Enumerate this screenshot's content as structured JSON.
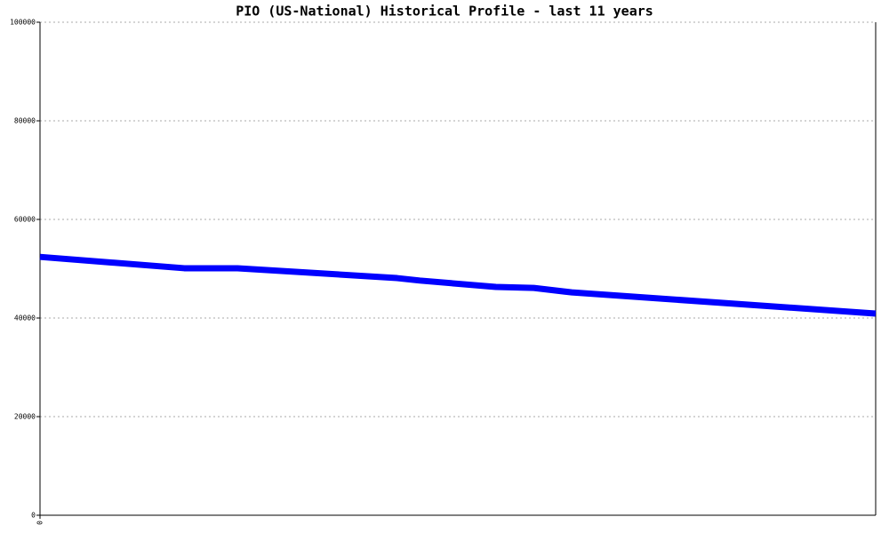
{
  "chart_data": {
    "type": "line",
    "title": "PIO (US-National) Historical Profile - last 11 years",
    "x": [
      0,
      1.9,
      2.6,
      4.7,
      5,
      6,
      6.5,
      7,
      11
    ],
    "values": [
      52400,
      50100,
      50100,
      48100,
      47600,
      46300,
      46100,
      45200,
      40900
    ],
    "color": "#0000ff",
    "xlim": [
      0,
      11
    ],
    "xticks": [
      0
    ],
    "ylim": [
      0,
      100000
    ],
    "yticks": [
      0,
      20000,
      40000,
      60000,
      80000,
      100000
    ],
    "grid": true
  }
}
